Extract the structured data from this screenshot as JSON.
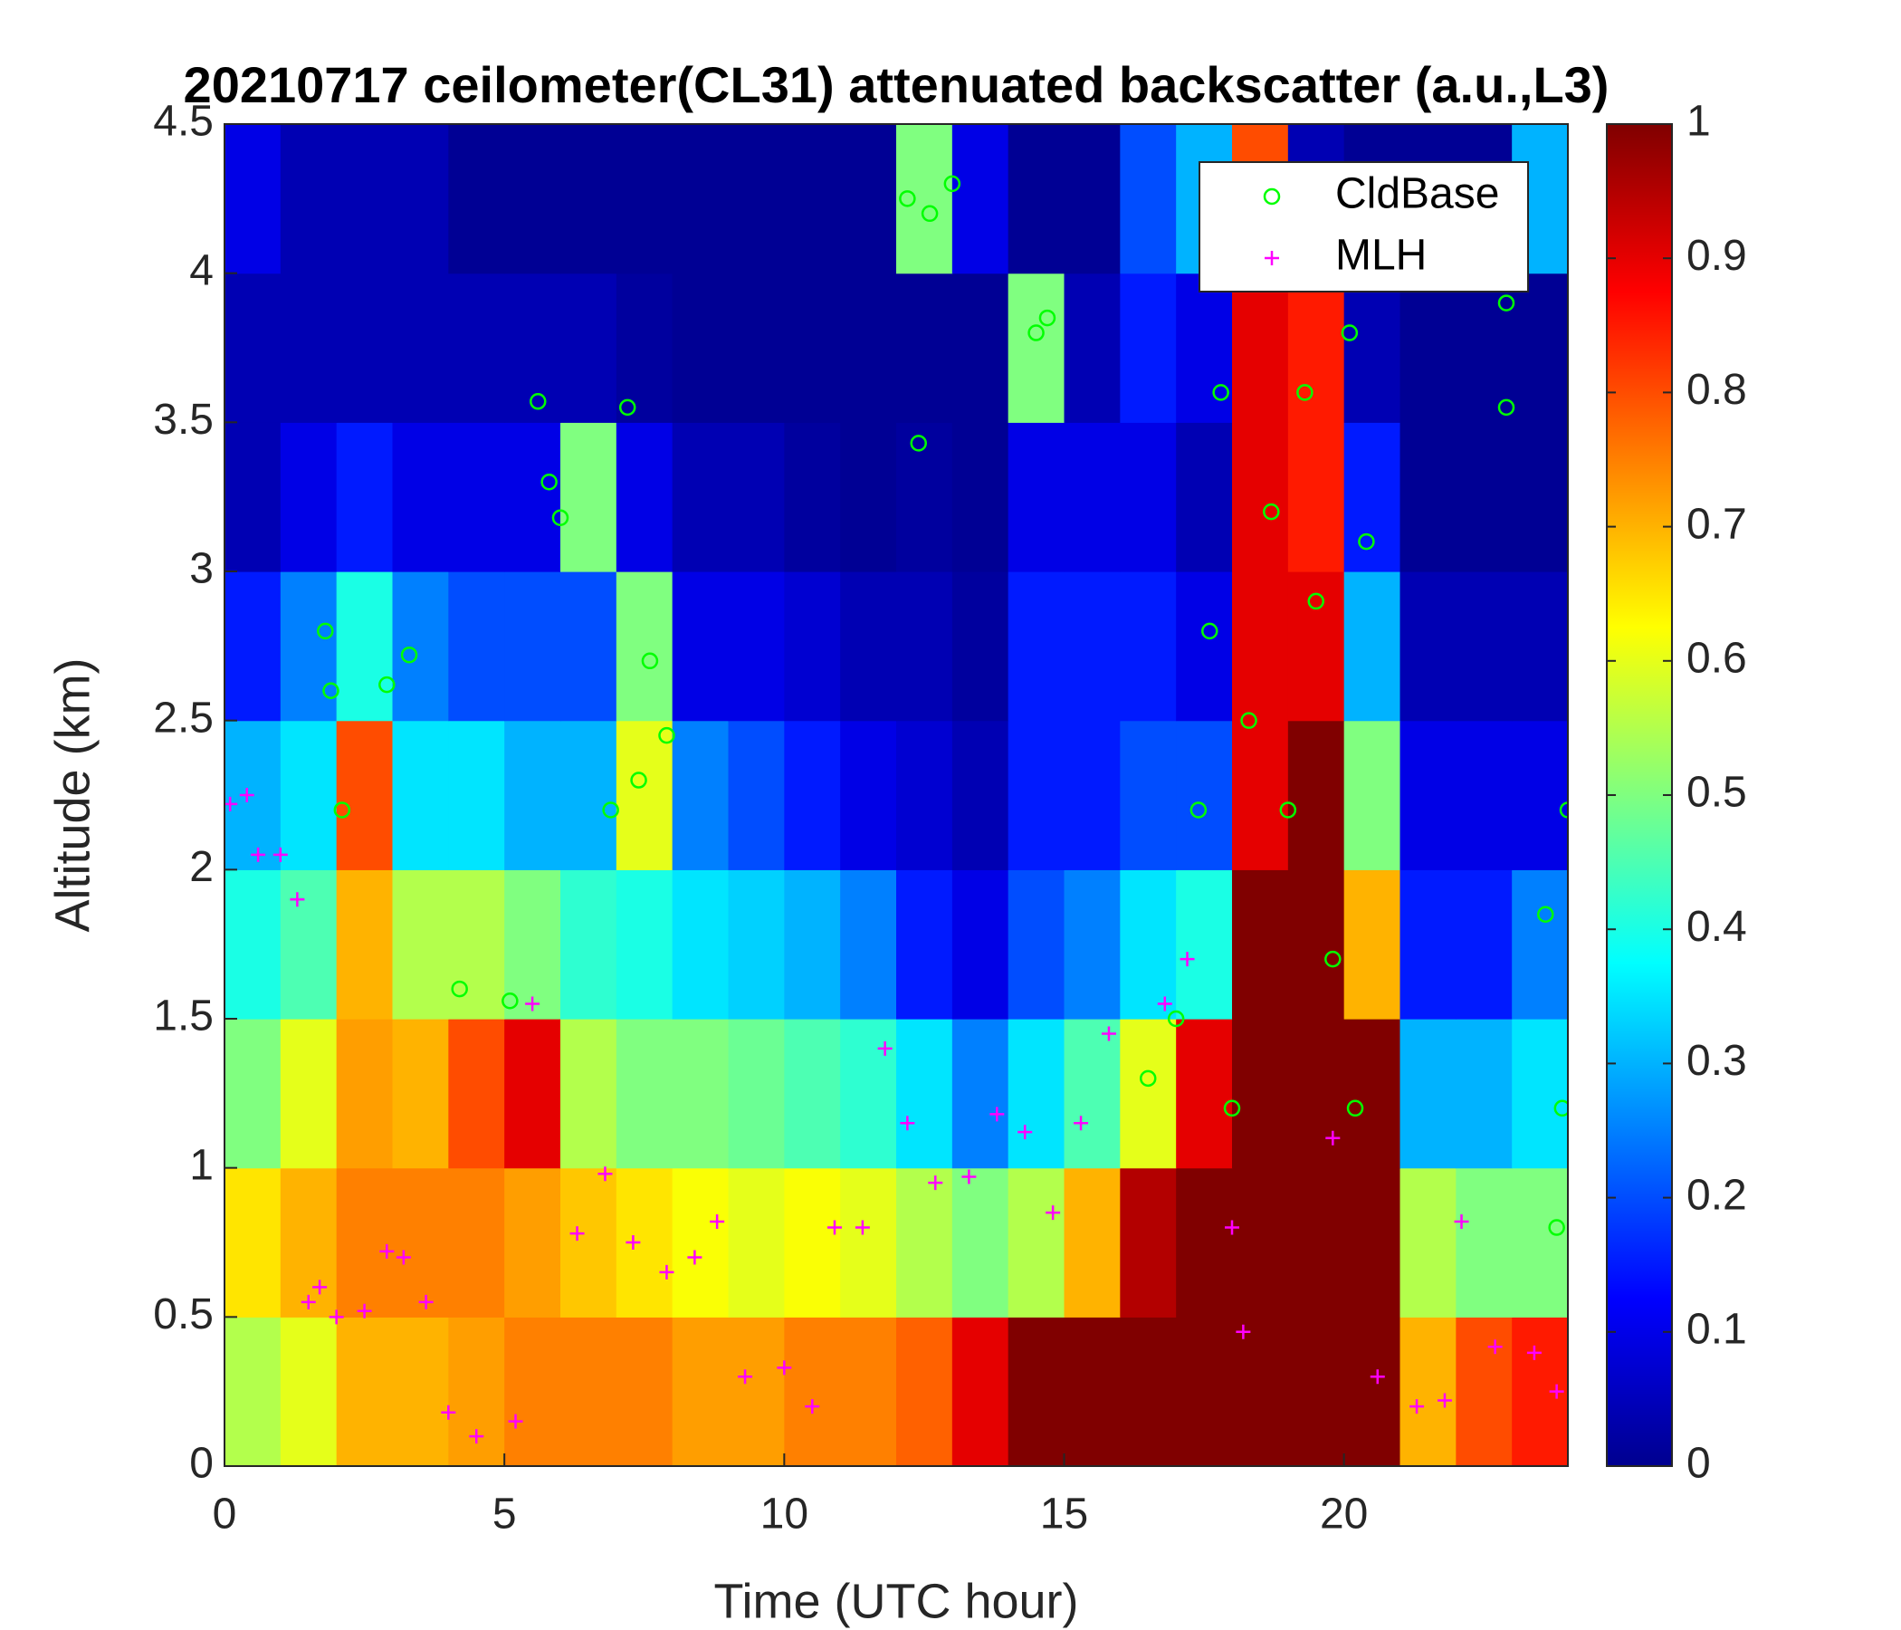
{
  "chart_data": {
    "type": "heatmap",
    "title": "20210717 ceilometer(CL31) attenuated backscatter (a.u.,L3)",
    "x_label": "Time (UTC hour)",
    "y_label": "Altitude (km)",
    "xlim": [
      0,
      24
    ],
    "xticks": [
      0,
      5,
      10,
      15,
      20
    ],
    "ylim": [
      0,
      4.5
    ],
    "yticks": [
      0,
      0.5,
      1,
      1.5,
      2,
      2.5,
      3,
      3.5,
      4,
      4.5
    ],
    "colormap": "jet",
    "clim": [
      0,
      1
    ],
    "cticks": [
      0,
      0.1,
      0.2,
      0.3,
      0.4,
      0.5,
      0.6,
      0.7,
      0.8,
      0.9,
      1
    ],
    "legend": "upper right",
    "x": [
      0.5,
      1.5,
      2.5,
      3.5,
      4.5,
      5.5,
      6.5,
      7.5,
      8.5,
      9.5,
      10.5,
      11.5,
      12.5,
      13.5,
      14.5,
      15.5,
      16.5,
      17.5,
      18.5,
      19.5,
      20.5,
      21.5,
      22.5,
      23.5
    ],
    "y": [
      0.25,
      0.75,
      1.25,
      1.75,
      2.25,
      2.75,
      3.25,
      3.75,
      4.25
    ],
    "z": [
      [
        0.55,
        0.6,
        0.7,
        0.7,
        0.72,
        0.75,
        0.75,
        0.75,
        0.72,
        0.72,
        0.75,
        0.75,
        0.78,
        0.9,
        1,
        1,
        1,
        1,
        1,
        1,
        1,
        0.7,
        0.8,
        0.85
      ],
      [
        0.65,
        0.7,
        0.75,
        0.75,
        0.75,
        0.72,
        0.68,
        0.65,
        0.62,
        0.6,
        0.62,
        0.6,
        0.55,
        0.5,
        0.55,
        0.7,
        0.95,
        1,
        1,
        1,
        1,
        0.55,
        0.5,
        0.5
      ],
      [
        0.5,
        0.6,
        0.72,
        0.7,
        0.8,
        0.9,
        0.55,
        0.5,
        0.5,
        0.48,
        0.45,
        0.42,
        0.35,
        0.25,
        0.35,
        0.45,
        0.6,
        0.9,
        1,
        1,
        1,
        0.3,
        0.3,
        0.35
      ],
      [
        0.4,
        0.45,
        0.7,
        0.55,
        0.55,
        0.5,
        0.42,
        0.4,
        0.35,
        0.33,
        0.3,
        0.25,
        0.15,
        0.1,
        0.2,
        0.25,
        0.35,
        0.4,
        1,
        1,
        0.7,
        0.15,
        0.15,
        0.25
      ],
      [
        0.3,
        0.35,
        0.8,
        0.35,
        0.35,
        0.3,
        0.3,
        0.6,
        0.25,
        0.2,
        0.15,
        0.1,
        0.08,
        0.05,
        0.15,
        0.15,
        0.2,
        0.2,
        0.9,
        1,
        0.5,
        0.1,
        0.1,
        0.1
      ],
      [
        0.15,
        0.25,
        0.4,
        0.25,
        0.2,
        0.2,
        0.2,
        0.5,
        0.1,
        0.1,
        0.08,
        0.05,
        0.05,
        0.03,
        0.15,
        0.15,
        0.15,
        0.1,
        0.9,
        0.9,
        0.3,
        0.05,
        0.05,
        0.05
      ],
      [
        0.05,
        0.1,
        0.15,
        0.1,
        0.1,
        0.1,
        0.5,
        0.1,
        0.05,
        0.05,
        0.03,
        0.02,
        0.03,
        0.02,
        0.1,
        0.1,
        0.1,
        0.05,
        0.9,
        0.85,
        0.15,
        0.02,
        0.02,
        0.02
      ],
      [
        0.05,
        0.05,
        0.05,
        0.05,
        0.05,
        0.05,
        0.05,
        0.03,
        0.02,
        0.02,
        0.02,
        0.02,
        0.02,
        0.02,
        0.5,
        0.05,
        0.15,
        0.1,
        0.9,
        0.85,
        0.05,
        0.02,
        0.02,
        0.02
      ],
      [
        0.1,
        0.05,
        0.05,
        0.05,
        0.02,
        0.02,
        0.02,
        0.02,
        0.02,
        0.02,
        0.02,
        0.02,
        0.5,
        0.1,
        0.02,
        0.02,
        0.2,
        0.3,
        0.8,
        0.05,
        0.02,
        0.02,
        0.02,
        0.3
      ]
    ],
    "series": [
      {
        "name": "CldBase",
        "marker": "circle",
        "color": "#00ff00",
        "x": [
          1.8,
          1.9,
          2.1,
          2.9,
          3.3,
          4.2,
          5.1,
          5.6,
          5.8,
          6.0,
          6.9,
          7.2,
          7.4,
          7.6,
          7.9,
          12.2,
          12.4,
          12.6,
          13.0,
          14.5,
          14.7,
          16.5,
          17,
          17.4,
          17.6,
          17.8,
          18.0,
          18.3,
          18.7,
          19.0,
          19.3,
          19.5,
          19.8,
          20.1,
          20.2,
          20.4,
          22.9,
          22.9,
          23.8,
          23.9,
          24,
          23.6
        ],
        "y": [
          2.8,
          2.6,
          2.2,
          2.62,
          2.72,
          1.6,
          1.56,
          3.57,
          3.3,
          3.18,
          2.2,
          3.55,
          2.3,
          2.7,
          2.45,
          4.25,
          3.43,
          4.2,
          4.3,
          3.8,
          3.85,
          1.3,
          1.5,
          2.2,
          2.8,
          3.6,
          1.2,
          2.5,
          3.2,
          2.2,
          3.6,
          2.9,
          1.7,
          3.8,
          1.2,
          3.1,
          3.55,
          3.9,
          0.8,
          1.2,
          2.2,
          1.85
        ]
      },
      {
        "name": "MLH",
        "marker": "plus",
        "color": "#ff00ff",
        "x": [
          0.1,
          0.4,
          0.6,
          1.0,
          1.3,
          1.5,
          1.7,
          2.0,
          2.5,
          2.9,
          3.2,
          3.6,
          4.0,
          4.5,
          5.2,
          5.5,
          6.3,
          6.8,
          7.3,
          7.9,
          8.4,
          8.8,
          9.3,
          10.0,
          10.5,
          10.9,
          11.4,
          11.8,
          12.2,
          12.7,
          13.3,
          13.8,
          14.3,
          14.8,
          15.3,
          15.8,
          16.8,
          17.2,
          18.0,
          18.2,
          19.8,
          20.6,
          21.3,
          21.8,
          22.1,
          22.7,
          23.4,
          23.8
        ],
        "y": [
          2.22,
          2.25,
          2.05,
          2.05,
          1.9,
          0.55,
          0.6,
          0.5,
          0.52,
          0.72,
          0.7,
          0.55,
          0.18,
          0.1,
          0.15,
          1.55,
          0.78,
          0.98,
          0.75,
          0.65,
          0.7,
          0.82,
          0.3,
          0.33,
          0.2,
          0.8,
          0.8,
          1.4,
          1.15,
          0.95,
          0.97,
          1.18,
          1.12,
          0.85,
          1.15,
          1.45,
          1.55,
          1.7,
          0.8,
          0.45,
          1.1,
          0.3,
          0.2,
          0.22,
          0.82,
          0.4,
          0.38,
          0.25
        ]
      }
    ]
  }
}
